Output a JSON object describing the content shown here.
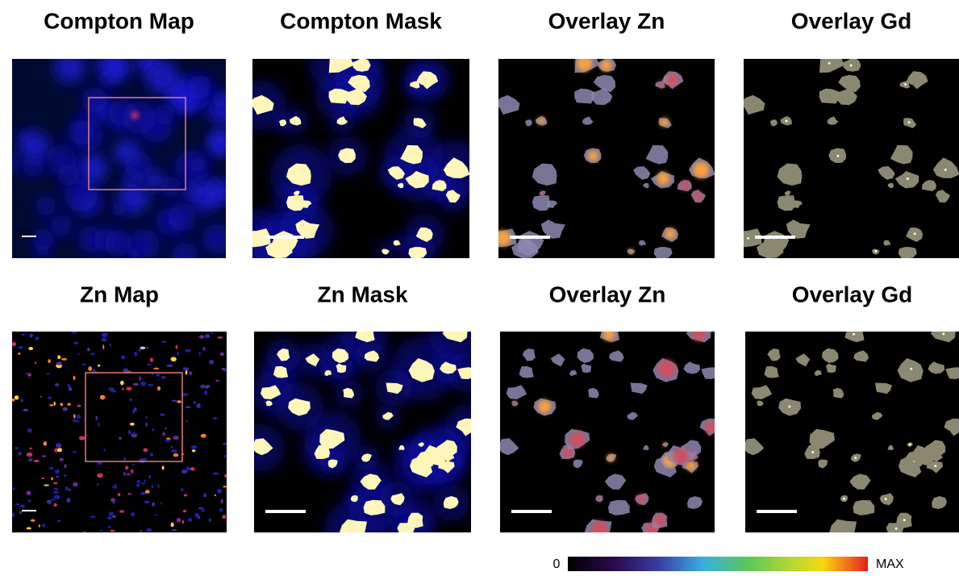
{
  "panels": [
    {
      "title": "Compton Map"
    },
    {
      "title": "Compton Mask"
    },
    {
      "title": "Overlay Zn"
    },
    {
      "title": "Overlay Gd"
    },
    {
      "title": "Zn Map"
    },
    {
      "title": "Zn Mask"
    },
    {
      "title": "Overlay Zn"
    },
    {
      "title": "Overlay Gd"
    }
  ],
  "colorbar": {
    "min_label": "0",
    "max_label": "MAX"
  }
}
